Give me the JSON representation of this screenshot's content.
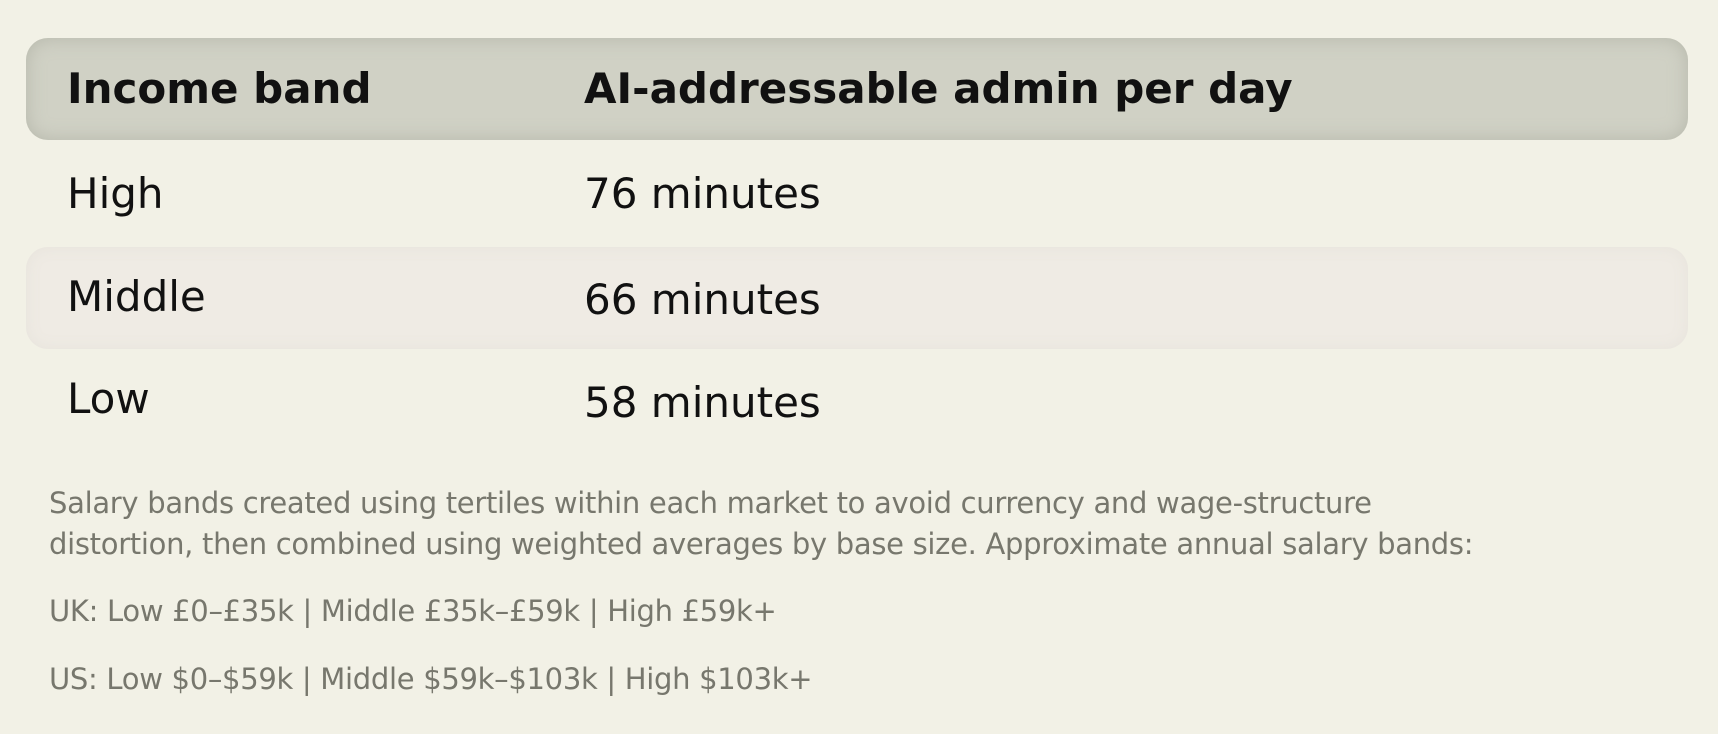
{
  "table": {
    "headers": [
      "Income band",
      "AI-addressable admin per day"
    ],
    "rows": [
      {
        "band": "High",
        "value": "76 minutes"
      },
      {
        "band": "Middle",
        "value": "66 minutes"
      },
      {
        "band": "Low",
        "value": "58 minutes"
      }
    ]
  },
  "footnote": {
    "line1": "Salary bands created using tertiles within each market to avoid currency and wage-structure",
    "line2": "distortion, then combined using weighted averages by base size. Approximate annual salary bands:",
    "uk": "UK: Low £0–£35k | Middle £35k–£59k | High £59k+",
    "us": "US: Low $0–$59k | Middle $59k–$103k | High $103k+"
  },
  "colors": {
    "background": "#f2f1e6",
    "header": "#d0d1c5",
    "alt_row": "#efebe4",
    "note_text": "#77776d"
  }
}
